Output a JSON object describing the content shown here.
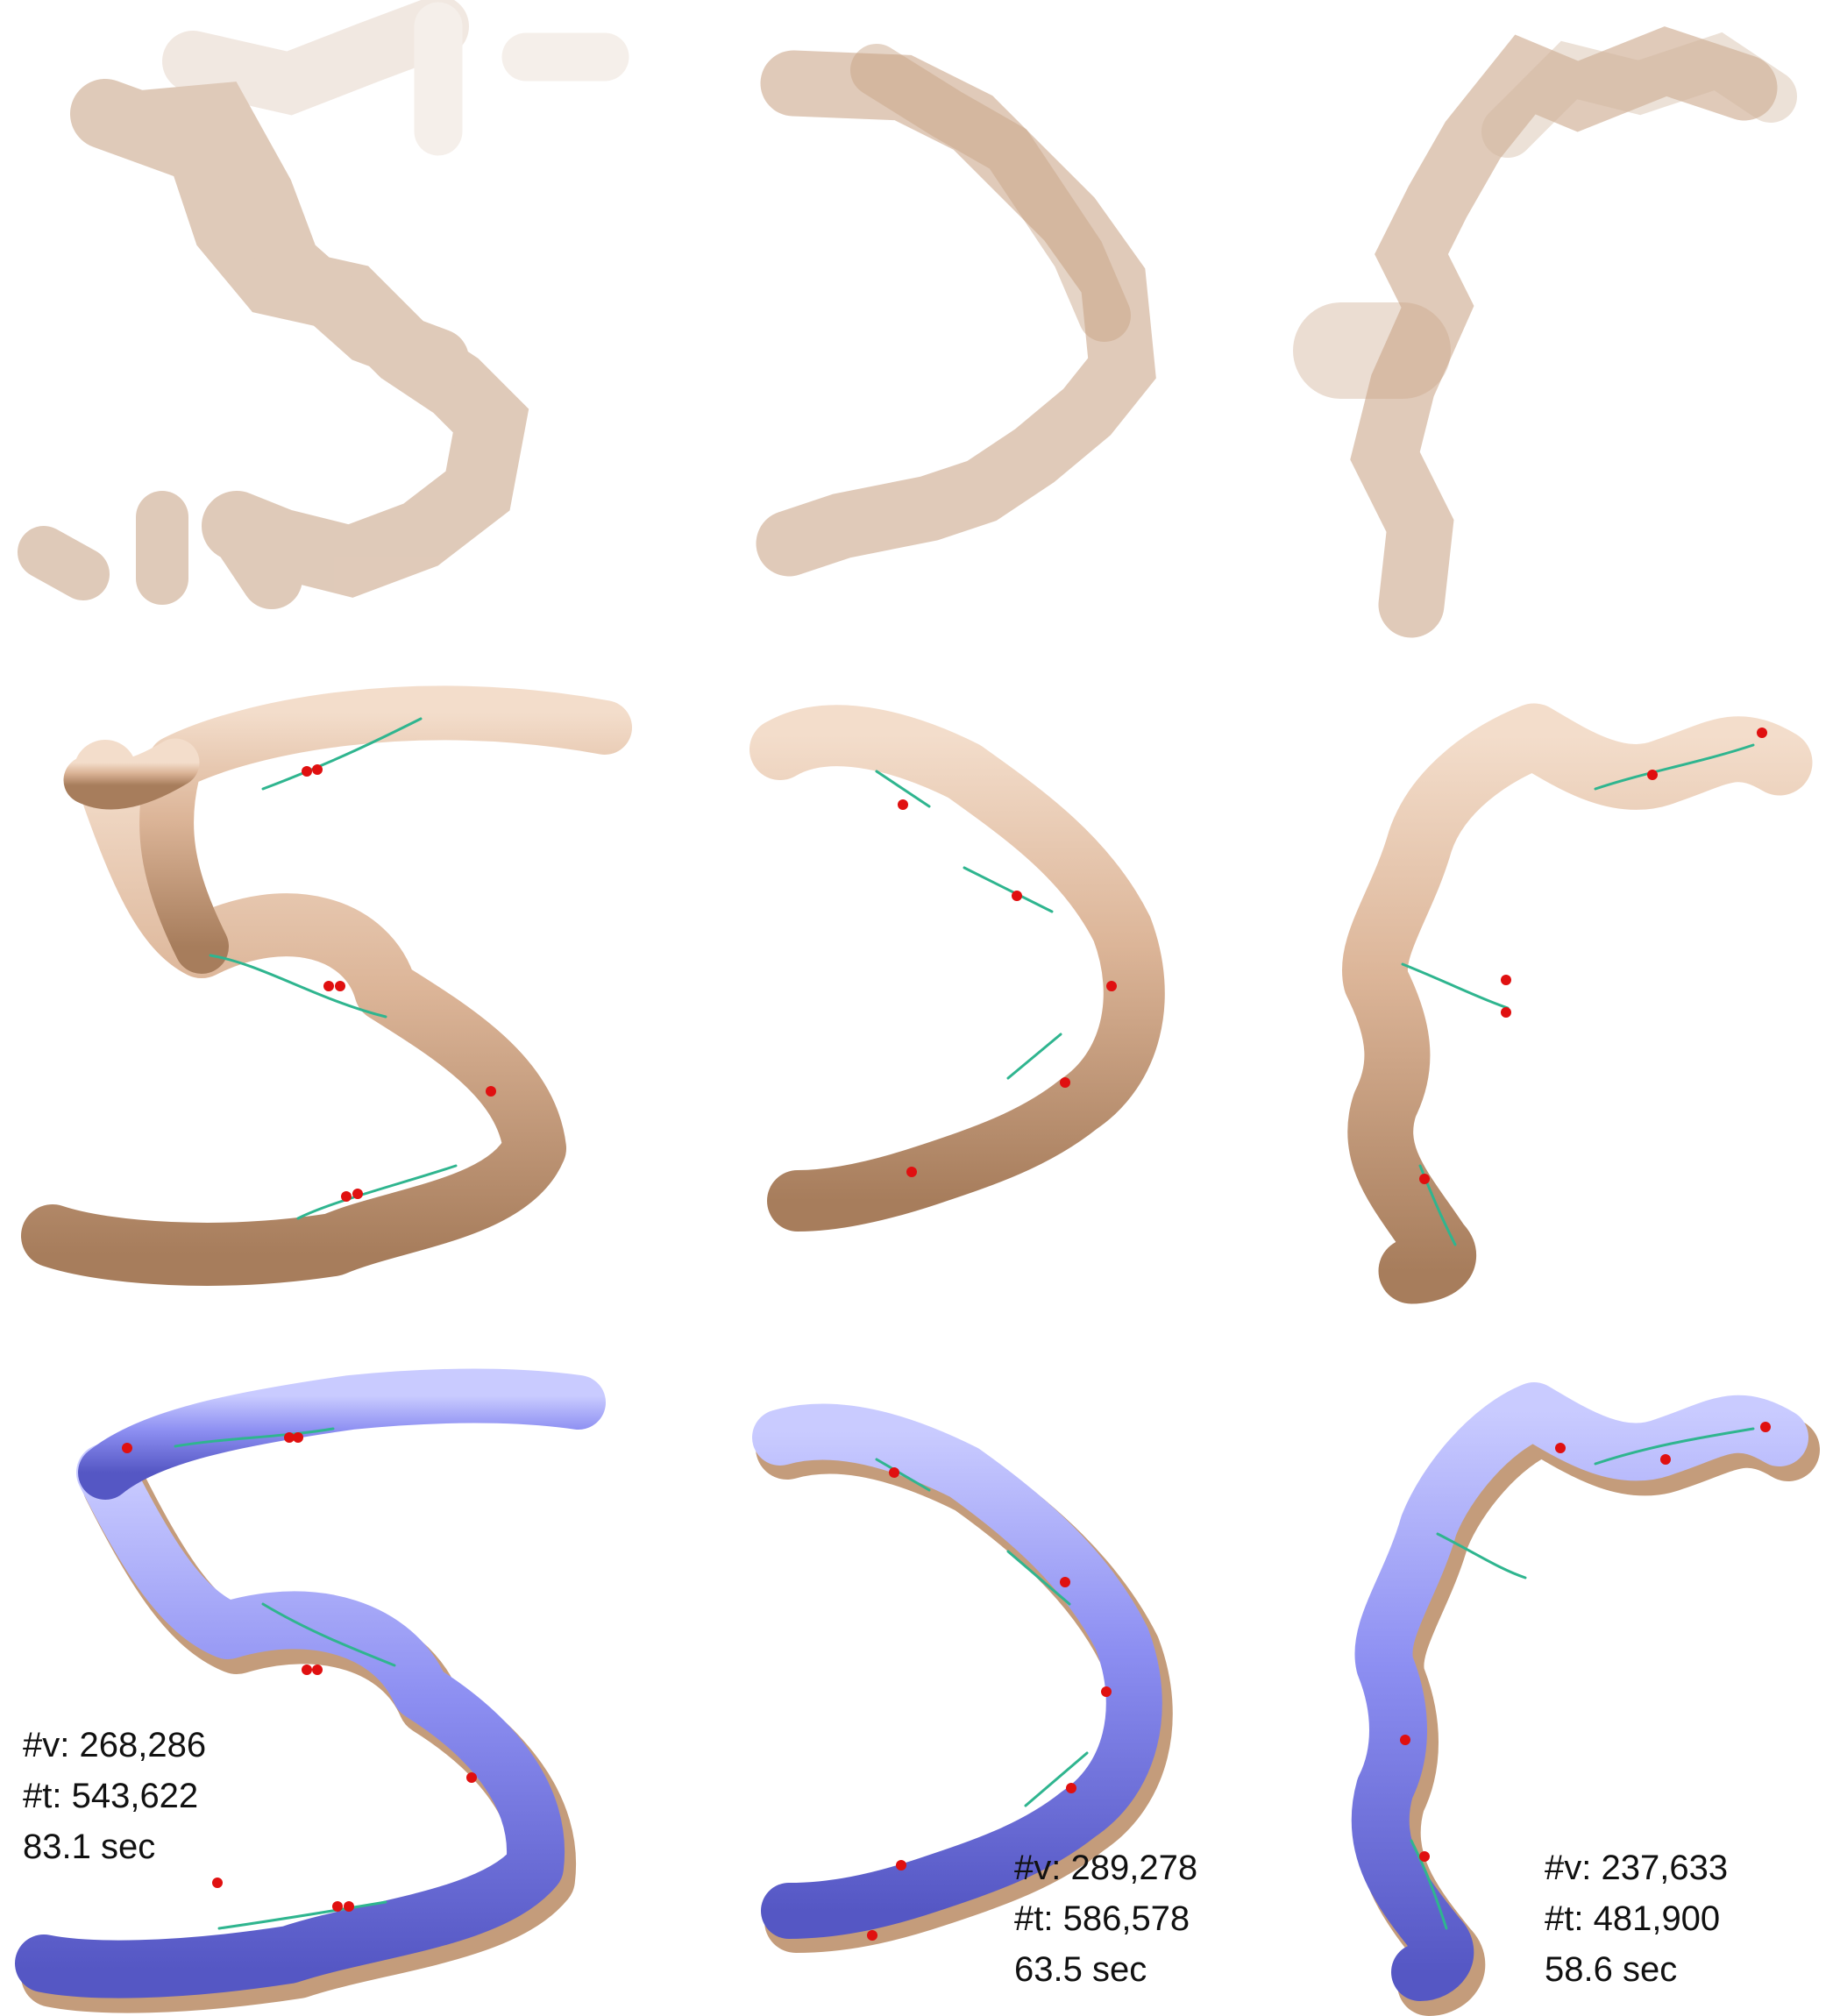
{
  "colors": {
    "tan": "#d9b193",
    "tan_dark": "#a9805f",
    "tan_light": "#f2dccb",
    "blue": "#8a8cf0",
    "blue_dark": "#5b5dc9",
    "blue_light": "#c7c9ff",
    "seam": "#2fb58f",
    "marker": "#e01010"
  },
  "panels": [
    {
      "row": "input-capsules",
      "glyph": "5"
    },
    {
      "row": "input-capsules",
      "glyph": "D"
    },
    {
      "row": "input-capsules",
      "glyph": "F"
    },
    {
      "row": "blended-tan",
      "glyph": "5"
    },
    {
      "row": "blended-tan",
      "glyph": "D"
    },
    {
      "row": "blended-tan",
      "glyph": "F"
    },
    {
      "row": "result-blue",
      "glyph": "5"
    },
    {
      "row": "result-blue",
      "glyph": "D"
    },
    {
      "row": "result-blue",
      "glyph": "F"
    }
  ],
  "stats": {
    "five": {
      "vertices": "#v: 268,286",
      "triangles": "#t: 543,622",
      "time": "83.1 sec"
    },
    "d": {
      "vertices": "#v: 289,278",
      "triangles": "#t: 586,578",
      "time": "63.5 sec"
    },
    "f": {
      "vertices": "#v: 237,633",
      "triangles": "#t: 481,900",
      "time": "58.6 sec"
    }
  }
}
